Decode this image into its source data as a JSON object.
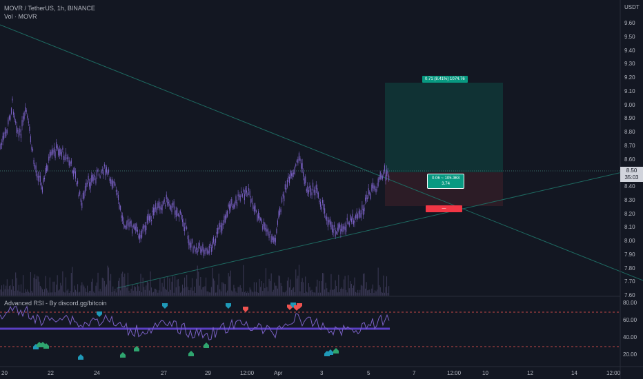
{
  "header": {
    "symbol_line": "MOVR / TetherUS, 1h, BINANCE",
    "volume_label": "Vol · MOVR",
    "currency": "USDT"
  },
  "price_axis": {
    "ticks": [
      "9.60",
      "9.50",
      "9.40",
      "9.30",
      "9.20",
      "9.10",
      "9.00",
      "8.90",
      "8.80",
      "8.70",
      "8.60",
      "8.50",
      "8.40",
      "8.30",
      "8.20",
      "8.10",
      "8.00",
      "7.90",
      "7.80",
      "7.70",
      "7.60"
    ],
    "current_price": "8.50",
    "countdown": "35:03"
  },
  "position": {
    "target_label": "0.71 (8.41%) 1074.76",
    "entry_label_line1": "0.06 ~ 105.363",
    "entry_label_line2": "3.74",
    "stop_label": "—"
  },
  "indicator": {
    "title": "Advanced RSI - By discord.gg/bitcoin",
    "ticks": [
      "80.00",
      "60.00",
      "40.00",
      "20.00"
    ]
  },
  "time_axis": {
    "labels": [
      "20",
      "22",
      "24",
      "27",
      "29",
      "12:00",
      "Apr",
      "3",
      "5",
      "7",
      "12:00",
      "10",
      "12",
      "14",
      "12:00"
    ]
  },
  "colors": {
    "background": "#131722",
    "candle": "#7b61c6",
    "tp_zone": "#103436",
    "sl_zone": "#2d1c27",
    "bull_marker": "#2fa56f",
    "bear_marker": "#ef5350",
    "neutral_marker": "#1f99b8",
    "rsi_midline": "#5b3fc4"
  },
  "icons": {
    "buy_signal": "arrow-up-tag-icon",
    "sell_signal": "arrow-down-tag-icon"
  }
}
